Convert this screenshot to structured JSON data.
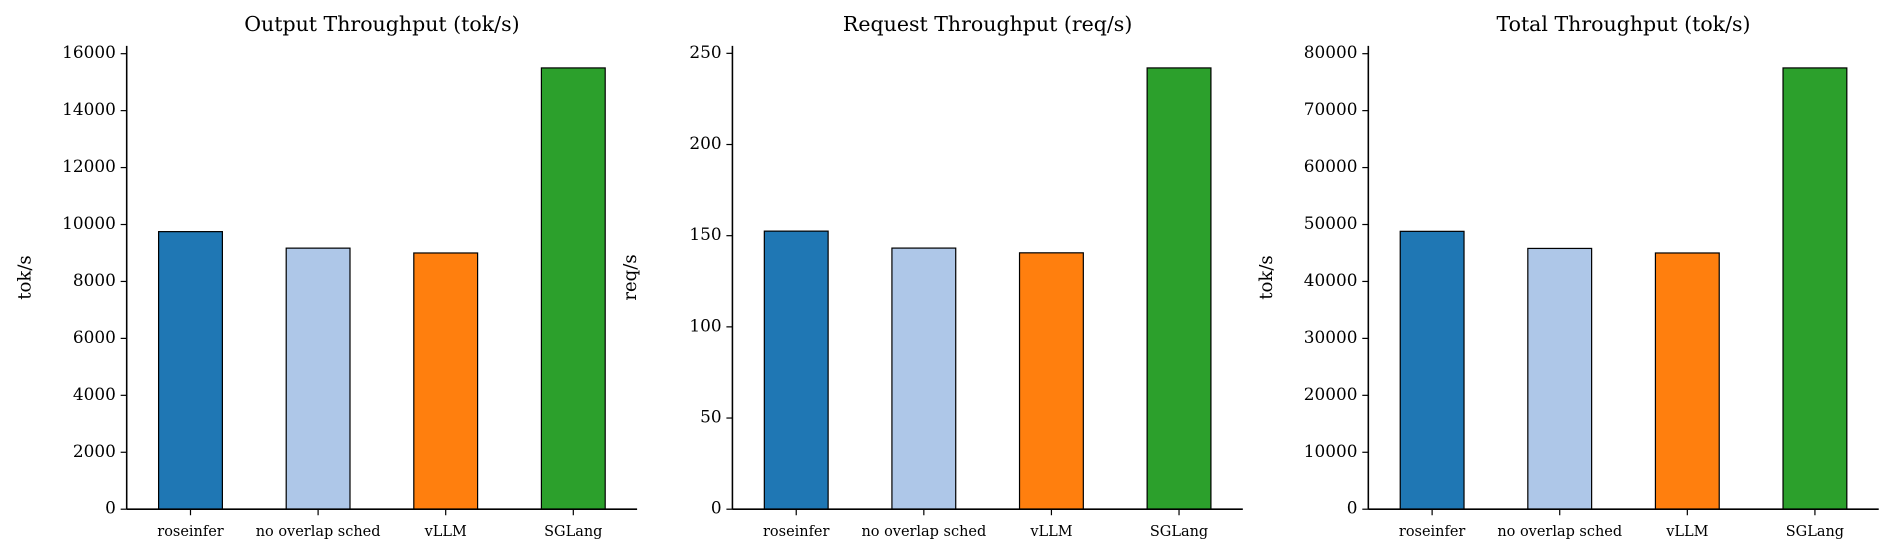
{
  "chart_data": [
    {
      "type": "bar",
      "title": "Output Throughput (tok/s)",
      "y_label": "tok/s",
      "categories": [
        "roseinfer",
        "no overlap sched",
        "vLLM",
        "SGLang"
      ],
      "values": [
        9750,
        9170,
        9000,
        15500
      ],
      "colors": [
        "#1f77b4",
        "#aec7e8",
        "#ff7f0e",
        "#2ca02c"
      ],
      "ylim": [
        0,
        16275
      ],
      "yticks": [
        0,
        2000,
        4000,
        6000,
        8000,
        10000,
        12000,
        14000,
        16000
      ]
    },
    {
      "type": "bar",
      "title": "Request Throughput (req/s)",
      "y_label": "req/s",
      "categories": [
        "roseinfer",
        "no overlap sched",
        "vLLM",
        "SGLang"
      ],
      "values": [
        152.5,
        143.2,
        140.6,
        242
      ],
      "colors": [
        "#1f77b4",
        "#aec7e8",
        "#ff7f0e",
        "#2ca02c"
      ],
      "ylim": [
        0,
        254.1
      ],
      "yticks": [
        0,
        50,
        100,
        150,
        200,
        250
      ]
    },
    {
      "type": "bar",
      "title": "Total Throughput (tok/s)",
      "y_label": "tok/s",
      "categories": [
        "roseinfer",
        "no overlap sched",
        "vLLM",
        "SGLang"
      ],
      "values": [
        48800,
        45800,
        45000,
        77500
      ],
      "colors": [
        "#1f77b4",
        "#aec7e8",
        "#ff7f0e",
        "#2ca02c"
      ],
      "ylim": [
        0,
        81375
      ],
      "yticks": [
        0,
        10000,
        20000,
        30000,
        40000,
        50000,
        60000,
        70000,
        80000
      ]
    }
  ]
}
